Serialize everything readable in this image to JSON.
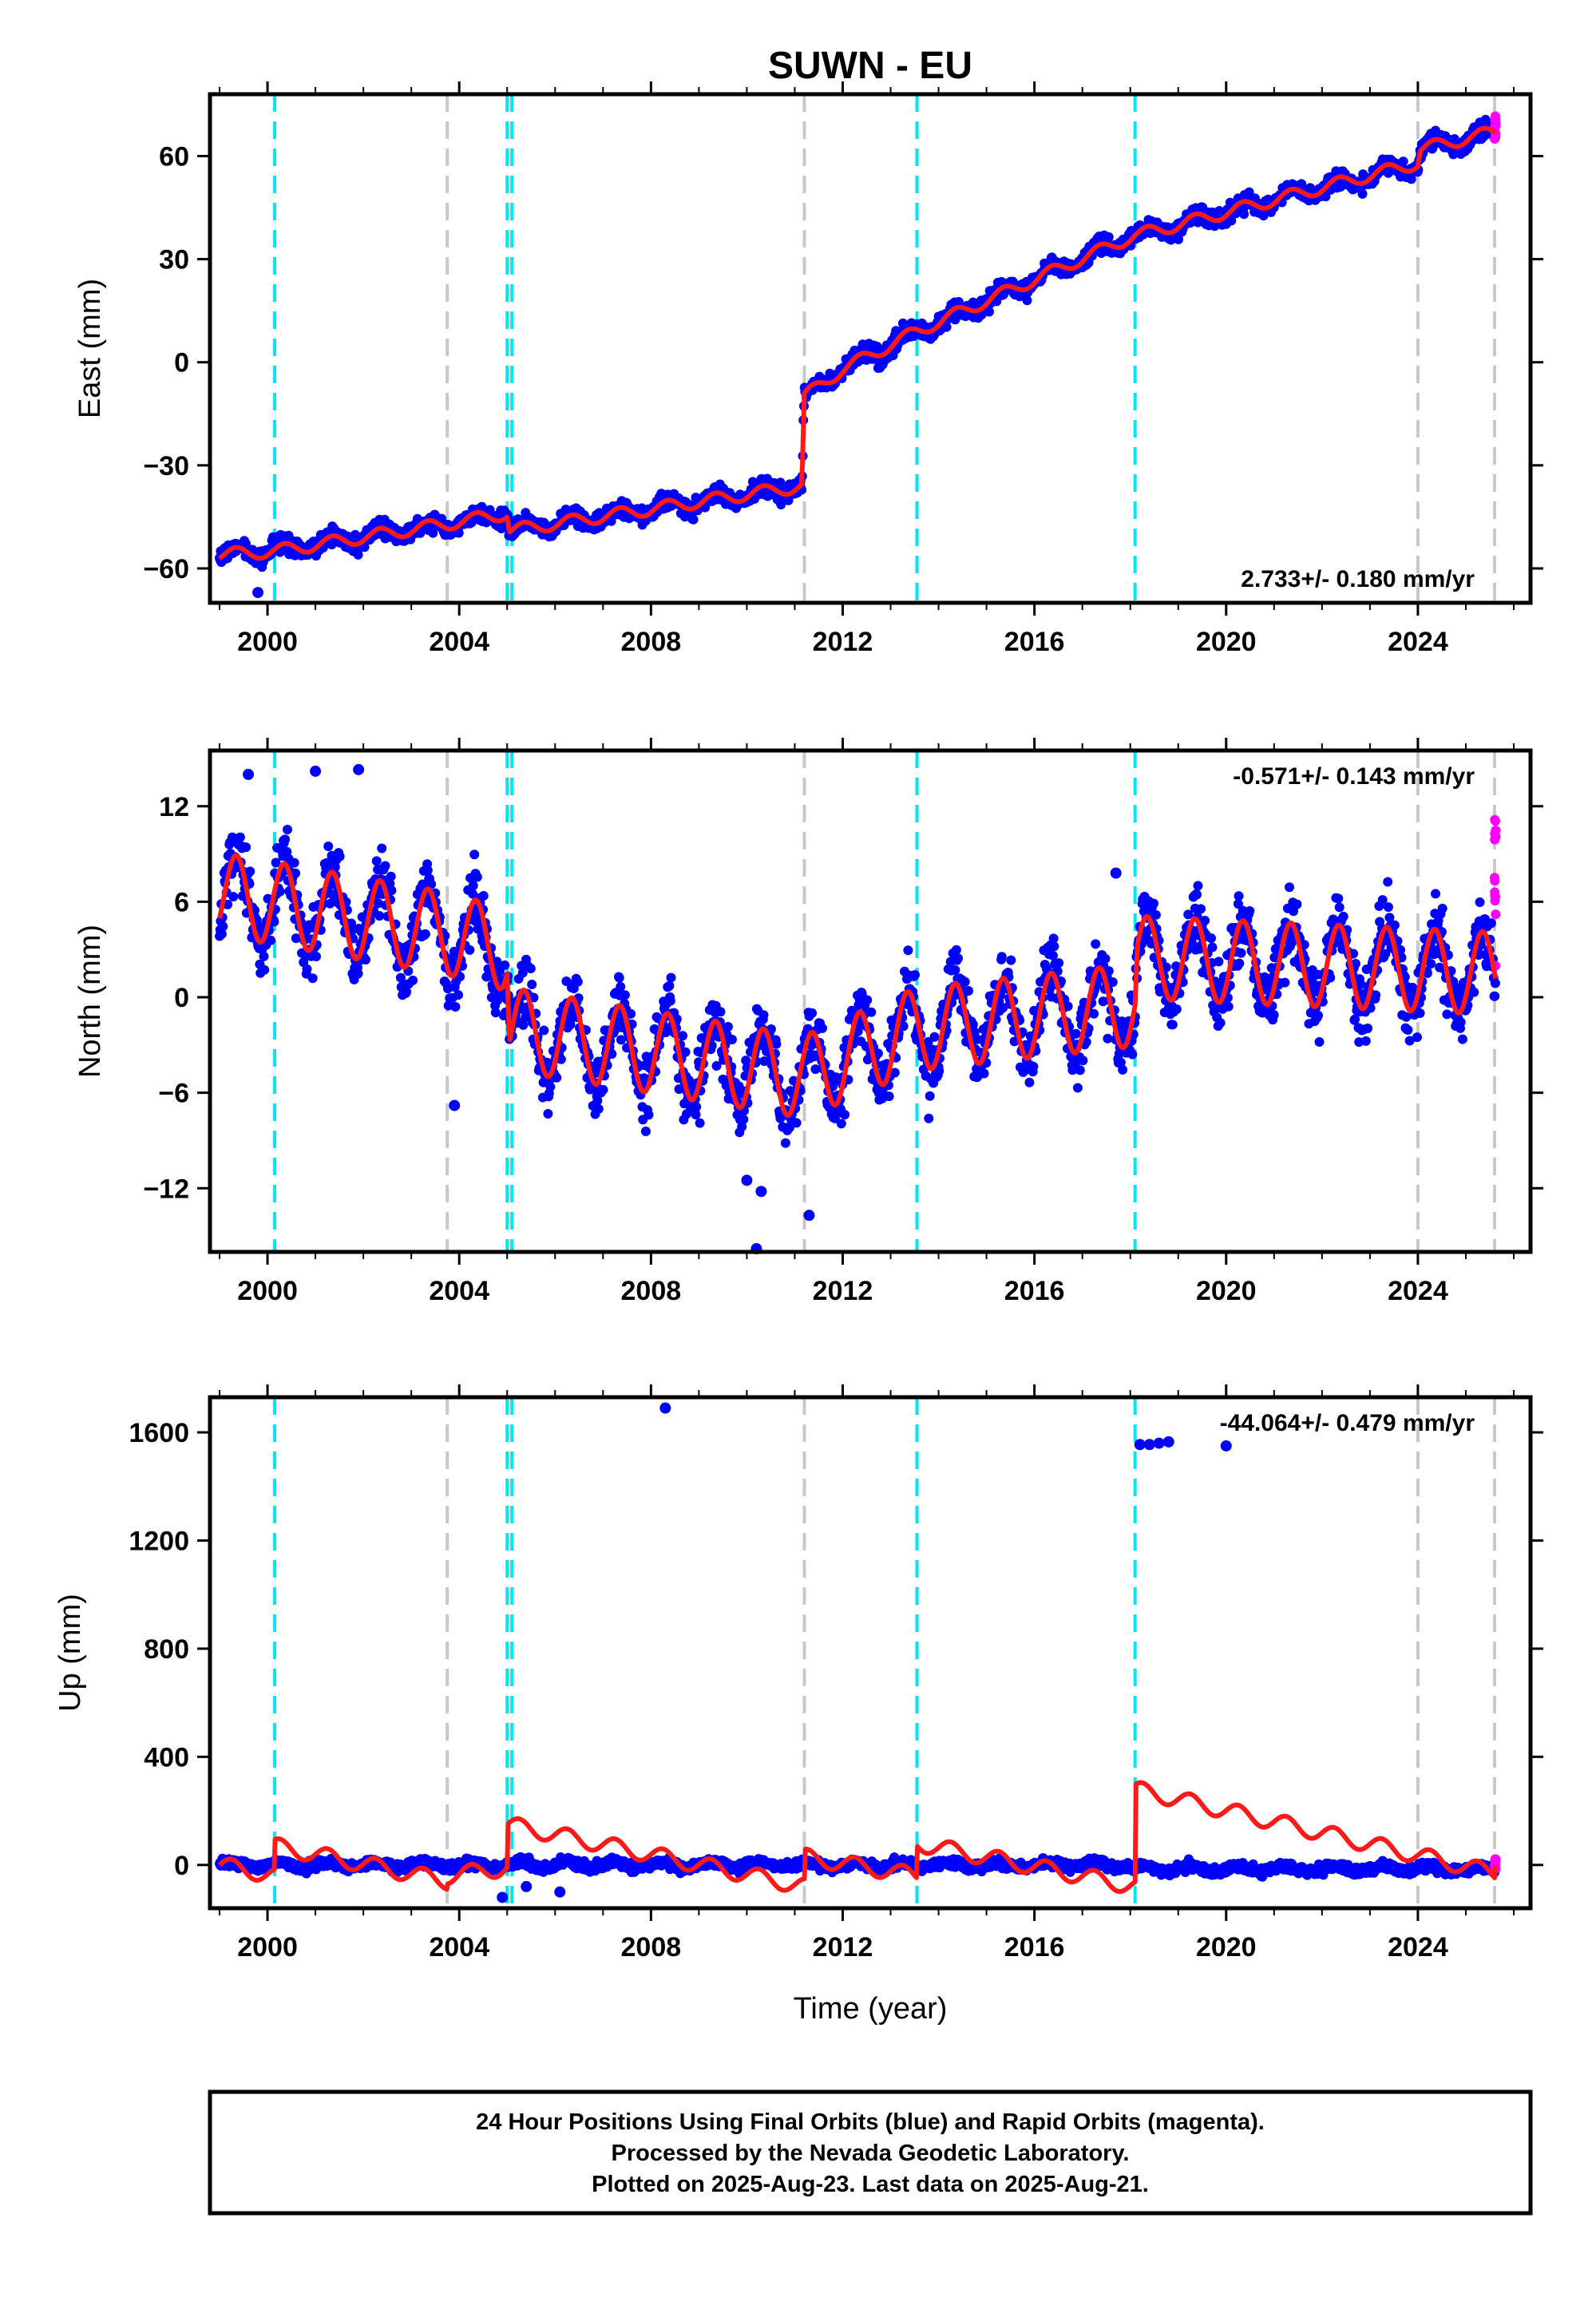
{
  "chart_data": {
    "type": "scatter",
    "title": "SUWN - EU",
    "xlabel": "Time (year)",
    "x_ticks": [
      2000,
      2004,
      2008,
      2012,
      2016,
      2020,
      2024
    ],
    "xlim": [
      1998.8,
      2026.35
    ],
    "vertical_lines": {
      "cyan": [
        2000.15,
        2005.0,
        2005.1,
        2013.55,
        2018.1
      ],
      "gray": [
        2003.75,
        2011.2,
        2024.0,
        2025.6
      ]
    },
    "colors": {
      "final_orbits": "#0000ff",
      "rapid_orbits": "#ff00ff",
      "model": "#ff1a1a",
      "cyan_line": "#00e5ee",
      "gray_line": "#c8c8c8"
    },
    "panels": [
      {
        "name": "East",
        "ylabel": "East (mm)",
        "ylim": [
          -70,
          78
        ],
        "y_ticks": [
          -60,
          -30,
          0,
          30,
          60
        ],
        "y_tick_labels": [
          "−60",
          "−30",
          "0",
          "30",
          "60"
        ],
        "rate": "2.733+/- 0.180 mm/yr",
        "rate_position": "bottom-right",
        "model_knots": [
          [
            1999.0,
            -56
          ],
          [
            2000.15,
            -55
          ],
          [
            2003.75,
            -47
          ],
          [
            2005.0,
            -44
          ],
          [
            2005.05,
            -49
          ],
          [
            2011.15,
            -36
          ],
          [
            2011.2,
            -10
          ],
          [
            2012.0,
            -2
          ],
          [
            2013.55,
            9
          ],
          [
            2018.1,
            37
          ],
          [
            2018.15,
            37
          ],
          [
            2024.0,
            58
          ],
          [
            2024.05,
            62
          ],
          [
            2025.6,
            67
          ]
        ],
        "seasonal_amplitude": 1.8,
        "noise": 1.8,
        "rapid_orbits_range": [
          64,
          72
        ],
        "outliers": [
          [
            1999.8,
            -67
          ]
        ]
      },
      {
        "name": "North",
        "ylabel": "North (mm)",
        "ylim": [
          -16,
          15.5
        ],
        "y_ticks": [
          -12,
          -6,
          0,
          6,
          12
        ],
        "y_tick_labels": [
          "−12",
          "−6",
          "0",
          "6",
          "12"
        ],
        "rate": "-0.571+/- 0.143 mm/yr",
        "rate_position": "top-right",
        "model_knots": [
          [
            1999.0,
            6.5
          ],
          [
            2003.75,
            4.0
          ],
          [
            2005.0,
            3.0
          ],
          [
            2005.05,
            -2.0
          ],
          [
            2011.2,
            -5.0
          ],
          [
            2013.55,
            -2.0
          ],
          [
            2018.1,
            -0.5
          ],
          [
            2018.15,
            2.5
          ],
          [
            2025.6,
            1.5
          ]
        ],
        "seasonal_amplitude": 2.6,
        "noise": 1.5,
        "rapid_orbits_range": [
          0.5,
          12.2
        ],
        "outliers": [
          [
            2010.2,
            -15.8
          ],
          [
            2010.3,
            -12.2
          ],
          [
            2011.3,
            -13.7
          ],
          [
            2003.9,
            -6.8
          ],
          [
            2001.0,
            14.2
          ],
          [
            1999.6,
            14.0
          ],
          [
            2001.9,
            14.3
          ],
          [
            2017.7,
            7.8
          ],
          [
            2010.0,
            -11.5
          ]
        ]
      },
      {
        "name": "Up",
        "ylabel": "Up (mm)",
        "ylim": [
          -160,
          1730
        ],
        "y_ticks": [
          0,
          400,
          800,
          1200,
          1600
        ],
        "y_tick_labels": [
          "0",
          "400",
          "800",
          "1200",
          "1600"
        ],
        "rate": "-44.064+/- 0.479 mm/yr",
        "rate_position": "top-right",
        "model_steps": [
          [
            1999.0,
            0,
            2000.15,
            -40
          ],
          [
            2000.15,
            70,
            2003.75,
            -60
          ],
          [
            2003.75,
            -40,
            2005.0,
            -10
          ],
          [
            2005.0,
            150,
            2011.2,
            -80
          ],
          [
            2011.2,
            30,
            2013.55,
            -40
          ],
          [
            2013.55,
            80,
            2018.1,
            -80
          ],
          [
            2018.1,
            280,
            2025.6,
            -30
          ]
        ],
        "seasonal_amplitude": 30,
        "noise": 12,
        "outliers": [
          [
            2008.3,
            1690
          ],
          [
            2018.2,
            1555
          ],
          [
            2018.4,
            1555
          ],
          [
            2018.6,
            1560
          ],
          [
            2018.8,
            1565
          ],
          [
            2020.0,
            1550
          ],
          [
            2004.9,
            -120
          ],
          [
            2006.1,
            -100
          ],
          [
            2005.4,
            -80
          ]
        ],
        "rapid_orbits_range": [
          -20,
          25
        ]
      }
    ]
  },
  "footer": {
    "line1": "24 Hour Positions Using Final Orbits (blue) and Rapid Orbits (magenta).",
    "line2": "Processed by the Nevada Geodetic Laboratory.",
    "line3": "Plotted on 2025-Aug-23. Last data on 2025-Aug-21."
  }
}
